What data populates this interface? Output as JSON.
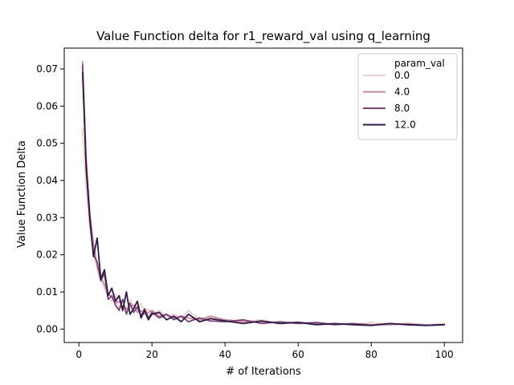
{
  "chart_data": {
    "type": "line",
    "title": "Value Function delta for r1_reward_val using q_learning",
    "xlabel": "# of Iterations",
    "ylabel": "Value Function Delta",
    "xlim": [
      -4.0,
      105.0
    ],
    "ylim": [
      -0.0036,
      0.0756
    ],
    "xticks": [
      0,
      20,
      40,
      60,
      80,
      100
    ],
    "yticks": [
      0.0,
      0.01,
      0.02,
      0.03,
      0.04,
      0.05,
      0.06,
      0.07
    ],
    "ytick_labels": [
      "0.00",
      "0.01",
      "0.02",
      "0.03",
      "0.04",
      "0.05",
      "0.06",
      "0.07"
    ],
    "grid": false,
    "legend": {
      "title": "param_val",
      "placement": "top-right"
    },
    "series": [
      {
        "name": "0.0",
        "color": "#edd1cb",
        "x": [
          1,
          2,
          3,
          4,
          5,
          6,
          7,
          8,
          9,
          10,
          11,
          12,
          13,
          14,
          15,
          16,
          17,
          18,
          19,
          20,
          22,
          24,
          26,
          28,
          30,
          33,
          36,
          40,
          45,
          50,
          55,
          60,
          65,
          70,
          75,
          80,
          85,
          90,
          95,
          100
        ],
        "y": [
          0.054,
          0.038,
          0.027,
          0.021,
          0.016,
          0.013,
          0.011,
          0.0085,
          0.0075,
          0.0095,
          0.0055,
          0.0065,
          0.0045,
          0.008,
          0.006,
          0.005,
          0.007,
          0.0045,
          0.0055,
          0.004,
          0.005,
          0.0035,
          0.004,
          0.003,
          0.005,
          0.0025,
          0.003,
          0.0025,
          0.002,
          0.0025,
          0.0015,
          0.002,
          0.0015,
          0.0015,
          0.0012,
          0.0018,
          0.0012,
          0.0015,
          0.0012,
          0.0015
        ]
      },
      {
        "name": "4.0",
        "color": "#c88aa5",
        "x": [
          1,
          2,
          3,
          4,
          5,
          6,
          7,
          8,
          9,
          10,
          11,
          12,
          13,
          14,
          15,
          16,
          17,
          18,
          19,
          20,
          22,
          24,
          26,
          28,
          30,
          33,
          36,
          40,
          45,
          50,
          55,
          60,
          65,
          70,
          75,
          80,
          85,
          90,
          95,
          100
        ],
        "y": [
          0.072,
          0.046,
          0.031,
          0.023,
          0.017,
          0.014,
          0.012,
          0.0095,
          0.0085,
          0.007,
          0.0075,
          0.006,
          0.0055,
          0.006,
          0.0065,
          0.0045,
          0.005,
          0.004,
          0.0045,
          0.005,
          0.0035,
          0.004,
          0.003,
          0.0035,
          0.003,
          0.0025,
          0.0035,
          0.0025,
          0.002,
          0.002,
          0.0018,
          0.0018,
          0.0015,
          0.0012,
          0.0015,
          0.0012,
          0.0012,
          0.0015,
          0.001,
          0.0012
        ]
      },
      {
        "name": "8.0",
        "color": "#7d4277",
        "x": [
          1,
          2,
          3,
          4,
          5,
          6,
          7,
          8,
          9,
          10,
          11,
          12,
          13,
          14,
          15,
          16,
          17,
          18,
          19,
          20,
          22,
          24,
          26,
          28,
          30,
          33,
          36,
          40,
          45,
          50,
          55,
          60,
          65,
          70,
          75,
          80,
          85,
          90,
          95,
          100
        ],
        "y": [
          0.071,
          0.043,
          0.029,
          0.02,
          0.018,
          0.013,
          0.015,
          0.008,
          0.009,
          0.0065,
          0.005,
          0.008,
          0.004,
          0.007,
          0.0045,
          0.006,
          0.0035,
          0.0055,
          0.003,
          0.0045,
          0.003,
          0.004,
          0.0025,
          0.0035,
          0.002,
          0.003,
          0.0022,
          0.002,
          0.0025,
          0.0015,
          0.002,
          0.0015,
          0.0018,
          0.0012,
          0.0015,
          0.001,
          0.0015,
          0.0012,
          0.001,
          0.0012
        ]
      },
      {
        "name": "12.0",
        "color": "#2d1b47",
        "x": [
          1,
          2,
          3,
          4,
          5,
          6,
          7,
          8,
          9,
          10,
          11,
          12,
          13,
          14,
          15,
          16,
          17,
          18,
          19,
          20,
          22,
          24,
          26,
          28,
          30,
          33,
          36,
          40,
          45,
          50,
          55,
          60,
          65,
          70,
          75,
          80,
          85,
          90,
          95,
          100
        ],
        "y": [
          0.069,
          0.044,
          0.03,
          0.0195,
          0.0245,
          0.0135,
          0.016,
          0.009,
          0.011,
          0.0075,
          0.009,
          0.005,
          0.01,
          0.004,
          0.0055,
          0.0075,
          0.003,
          0.005,
          0.0025,
          0.004,
          0.0045,
          0.0025,
          0.0035,
          0.002,
          0.004,
          0.002,
          0.0028,
          0.0022,
          0.0015,
          0.0022,
          0.0015,
          0.0018,
          0.0012,
          0.0015,
          0.0012,
          0.001,
          0.0015,
          0.0012,
          0.001,
          0.0012
        ]
      }
    ]
  }
}
